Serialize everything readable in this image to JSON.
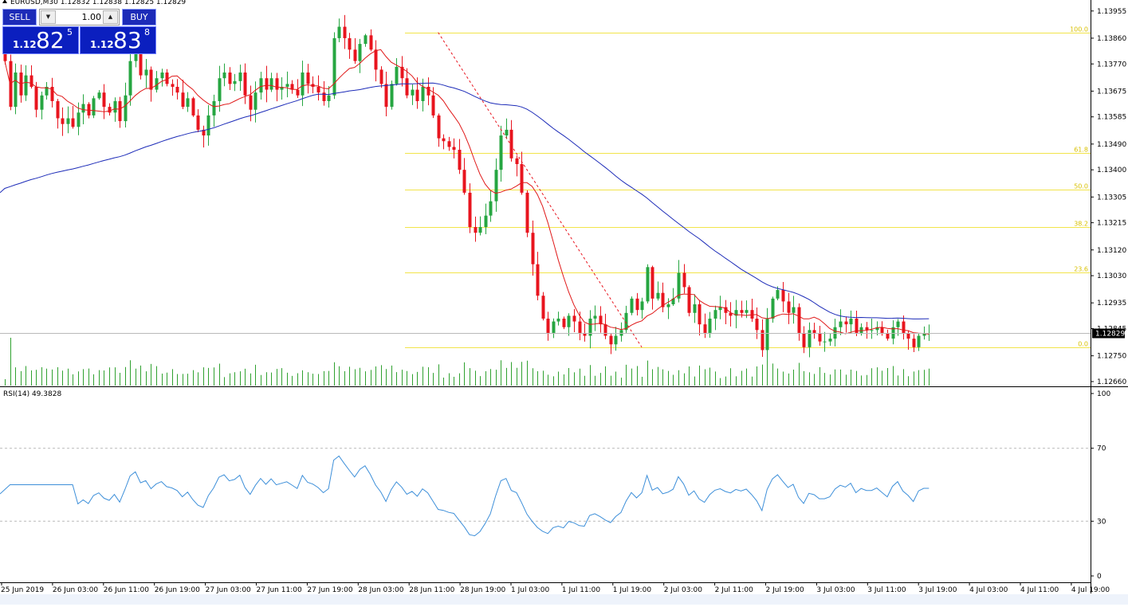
{
  "window": {
    "title": "EURUSD,M30  1.12832 1.12838 1.12825 1.12829"
  },
  "trade_panel": {
    "sell_label": "SELL",
    "buy_label": "BUY",
    "lot_value": "1.00",
    "sell_price": {
      "small": "1.12",
      "big": "82",
      "pip": "5"
    },
    "buy_price": {
      "small": "1.12",
      "big": "83",
      "pip": "8"
    }
  },
  "rsi": {
    "label": "RSI(14) 49.3828",
    "levels": [
      "100",
      "70",
      "30",
      "0"
    ]
  },
  "current_price_label": "1.12829",
  "colors": {
    "bull": "#26a641",
    "bear": "#e8141e",
    "ma_fast": "#e01818",
    "ma_slow": "#1c2bb8",
    "fib": "#f2e44a",
    "rsi": "#3d8fd9",
    "volume": "#2fa12f"
  },
  "chart_data": {
    "type": "candlestick",
    "symbol": "EURUSD",
    "timeframe": "M30",
    "ylim": [
      1.1266,
      1.1396
    ],
    "y_ticks": [
      "1.13955",
      "1.13860",
      "1.13770",
      "1.13675",
      "1.13585",
      "1.13490",
      "1.13400",
      "1.13305",
      "1.13215",
      "1.13120",
      "1.13030",
      "1.12935",
      "1.12845",
      "1.12750",
      "1.12660"
    ],
    "x_ticks": [
      "25 Jun 2019",
      "26 Jun 03:00",
      "26 Jun 11:00",
      "26 Jun 19:00",
      "27 Jun 03:00",
      "27 Jun 11:00",
      "27 Jun 19:00",
      "28 Jun 03:00",
      "28 Jun 11:00",
      "28 Jun 19:00",
      "1 Jul 03:00",
      "1 Jul 11:00",
      "1 Jul 19:00",
      "2 Jul 03:00",
      "2 Jul 11:00",
      "2 Jul 19:00",
      "3 Jul 03:00",
      "3 Jul 11:00",
      "3 Jul 19:00",
      "4 Jul 03:00",
      "4 Jul 11:00",
      "4 Jul 19:00"
    ],
    "fib_levels": [
      {
        "label": "100.0",
        "price": 1.1388
      },
      {
        "label": "61.8",
        "price": 1.1346
      },
      {
        "label": "50.0",
        "price": 1.1333
      },
      {
        "label": "38.2",
        "price": 1.132
      },
      {
        "label": "23.6",
        "price": 1.1304
      },
      {
        "label": "0.0",
        "price": 1.1278
      }
    ],
    "current_price": 1.12829,
    "closes": [
      1.1378,
      1.1362,
      1.1374,
      1.1366,
      1.1373,
      1.1369,
      1.1361,
      1.1366,
      1.1369,
      1.1364,
      1.1358,
      1.1356,
      1.1358,
      1.1355,
      1.136,
      1.1363,
      1.1359,
      1.1365,
      1.1367,
      1.1362,
      1.136,
      1.1364,
      1.1357,
      1.1366,
      1.1378,
      1.1382,
      1.1373,
      1.1375,
      1.1368,
      1.1372,
      1.1374,
      1.137,
      1.1369,
      1.1367,
      1.1362,
      1.1365,
      1.1359,
      1.1354,
      1.1352,
      1.1359,
      1.1364,
      1.1372,
      1.1374,
      1.137,
      1.1371,
      1.1374,
      1.1366,
      1.1361,
      1.1367,
      1.1372,
      1.1368,
      1.1372,
      1.1368,
      1.1369,
      1.137,
      1.1368,
      1.1366,
      1.1374,
      1.137,
      1.1369,
      1.1367,
      1.1364,
      1.1366,
      1.1386,
      1.139,
      1.1386,
      1.1382,
      1.1378,
      1.1384,
      1.1387,
      1.1382,
      1.1375,
      1.137,
      1.1362,
      1.137,
      1.1376,
      1.1372,
      1.1366,
      1.1368,
      1.1364,
      1.1369,
      1.1366,
      1.1359,
      1.1351,
      1.135,
      1.1348,
      1.1347,
      1.134,
      1.1332,
      1.132,
      1.1318,
      1.132,
      1.1324,
      1.1329,
      1.134,
      1.1352,
      1.1354,
      1.1344,
      1.1342,
      1.1332,
      1.1318,
      1.1307,
      1.1296,
      1.1288,
      1.1283,
      1.1287,
      1.1288,
      1.1285,
      1.1289,
      1.1287,
      1.1283,
      1.1282,
      1.1288,
      1.1289,
      1.1286,
      1.1282,
      1.1279,
      1.1282,
      1.1284,
      1.129,
      1.1295,
      1.1291,
      1.1294,
      1.1306,
      1.1295,
      1.1297,
      1.1292,
      1.1293,
      1.1295,
      1.1304,
      1.1299,
      1.129,
      1.1293,
      1.1286,
      1.1283,
      1.1288,
      1.1291,
      1.1292,
      1.129,
      1.1289,
      1.1291,
      1.129,
      1.1291,
      1.1288,
      1.1284,
      1.1277,
      1.1288,
      1.1295,
      1.1298,
      1.1294,
      1.129,
      1.1292,
      1.1283,
      1.1278,
      1.1284,
      1.1283,
      1.128,
      1.128,
      1.1281,
      1.1285,
      1.1287,
      1.1286,
      1.1288,
      1.1283,
      1.1285,
      1.1284,
      1.1284,
      1.1285,
      1.1283,
      1.1281,
      1.1285,
      1.1287,
      1.1283,
      1.1281,
      1.1278,
      1.1282,
      1.1283,
      1.1283
    ],
    "volume_peak_index": 1
  }
}
